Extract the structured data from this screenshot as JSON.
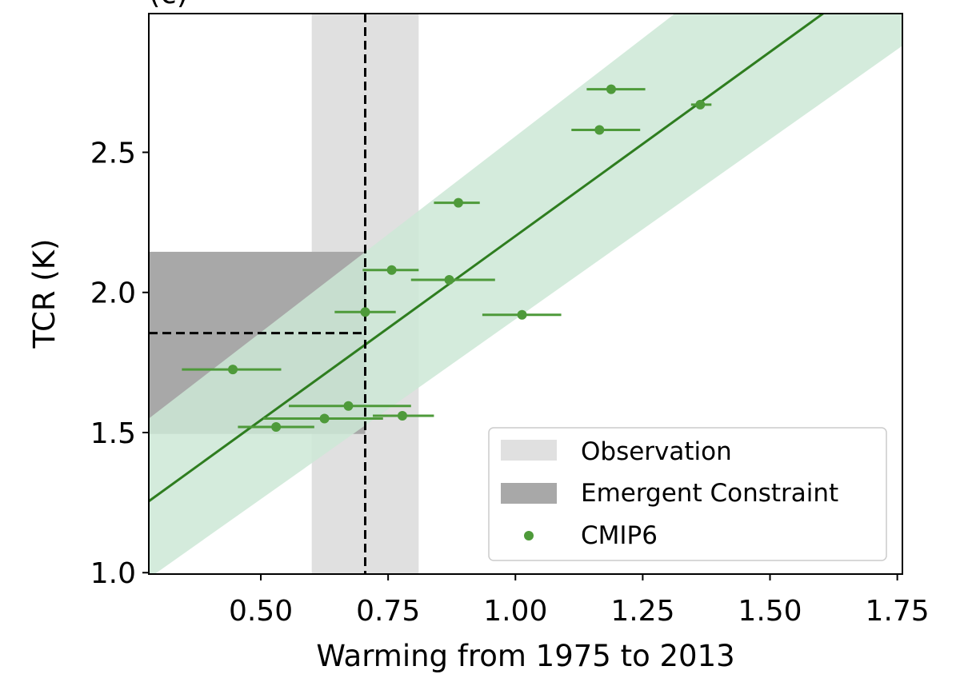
{
  "chart_data": {
    "type": "scatter",
    "panel_label": "(c)",
    "xlabel": "Warming from 1975 to 2013",
    "ylabel": "TCR (K)",
    "xlim": [
      0.28,
      1.76
    ],
    "ylim": [
      0.995,
      2.995
    ],
    "xticks": [
      0.5,
      0.75,
      1.0,
      1.25,
      1.5,
      1.75
    ],
    "xtick_labels": [
      "0.50",
      "0.75",
      "1.00",
      "1.25",
      "1.50",
      "1.75"
    ],
    "yticks": [
      1.0,
      1.5,
      2.0,
      2.5
    ],
    "ytick_labels": [
      "1.0",
      "1.5",
      "2.0",
      "2.5"
    ],
    "grid": false,
    "legend_position": "bottom-right",
    "legend": [
      {
        "label": "Observation",
        "kind": "patch",
        "color": "#e0e0e0"
      },
      {
        "label": "Emergent Constraint",
        "kind": "patch",
        "color": "#a8a8a8"
      },
      {
        "label": "CMIP6",
        "kind": "marker",
        "color": "#4e9a3a"
      }
    ],
    "colors": {
      "points": "#4e9a3a",
      "regression_line": "#2e7d1f",
      "confidence_band": "#cce8d6",
      "observation_band": "#e0e0e0",
      "constraint_band": "#a8a8a8",
      "reference_lines": "#000000"
    },
    "observation": {
      "x_best": 0.705,
      "x_range": [
        0.6,
        0.81
      ]
    },
    "emergent_constraint": {
      "y_best": 1.855,
      "y_range": [
        1.495,
        2.145
      ]
    },
    "regression": {
      "x": [
        0.28,
        1.76
      ],
      "y": [
        1.255,
        3.2
      ]
    },
    "confidence_band": {
      "x": [
        0.28,
        1.76
      ],
      "lower": [
        0.98,
        2.88
      ],
      "upper": [
        1.55,
        3.62
      ]
    },
    "series": [
      {
        "name": "CMIP6",
        "points": [
          {
            "x": 0.445,
            "y": 1.725,
            "xerr": [
              0.345,
              0.54
            ]
          },
          {
            "x": 0.53,
            "y": 1.52,
            "xerr": [
              0.455,
              0.605
            ]
          },
          {
            "x": 0.625,
            "y": 1.55,
            "xerr": [
              0.505,
              0.74
            ]
          },
          {
            "x": 0.672,
            "y": 1.595,
            "xerr": [
              0.555,
              0.795
            ]
          },
          {
            "x": 0.705,
            "y": 1.93,
            "xerr": [
              0.645,
              0.765
            ]
          },
          {
            "x": 0.757,
            "y": 2.08,
            "xerr": [
              0.7,
              0.81
            ]
          },
          {
            "x": 0.778,
            "y": 1.56,
            "xerr": [
              0.72,
              0.84
            ]
          },
          {
            "x": 0.87,
            "y": 2.045,
            "xerr": [
              0.795,
              0.96
            ]
          },
          {
            "x": 0.888,
            "y": 2.32,
            "xerr": [
              0.84,
              0.93
            ]
          },
          {
            "x": 1.013,
            "y": 1.92,
            "xerr": [
              0.935,
              1.09
            ]
          },
          {
            "x": 1.165,
            "y": 2.58,
            "xerr": [
              1.11,
              1.245
            ]
          },
          {
            "x": 1.188,
            "y": 2.725,
            "xerr": [
              1.14,
              1.255
            ]
          },
          {
            "x": 1.363,
            "y": 2.67,
            "xerr": [
              1.345,
              1.385
            ]
          }
        ]
      }
    ]
  }
}
